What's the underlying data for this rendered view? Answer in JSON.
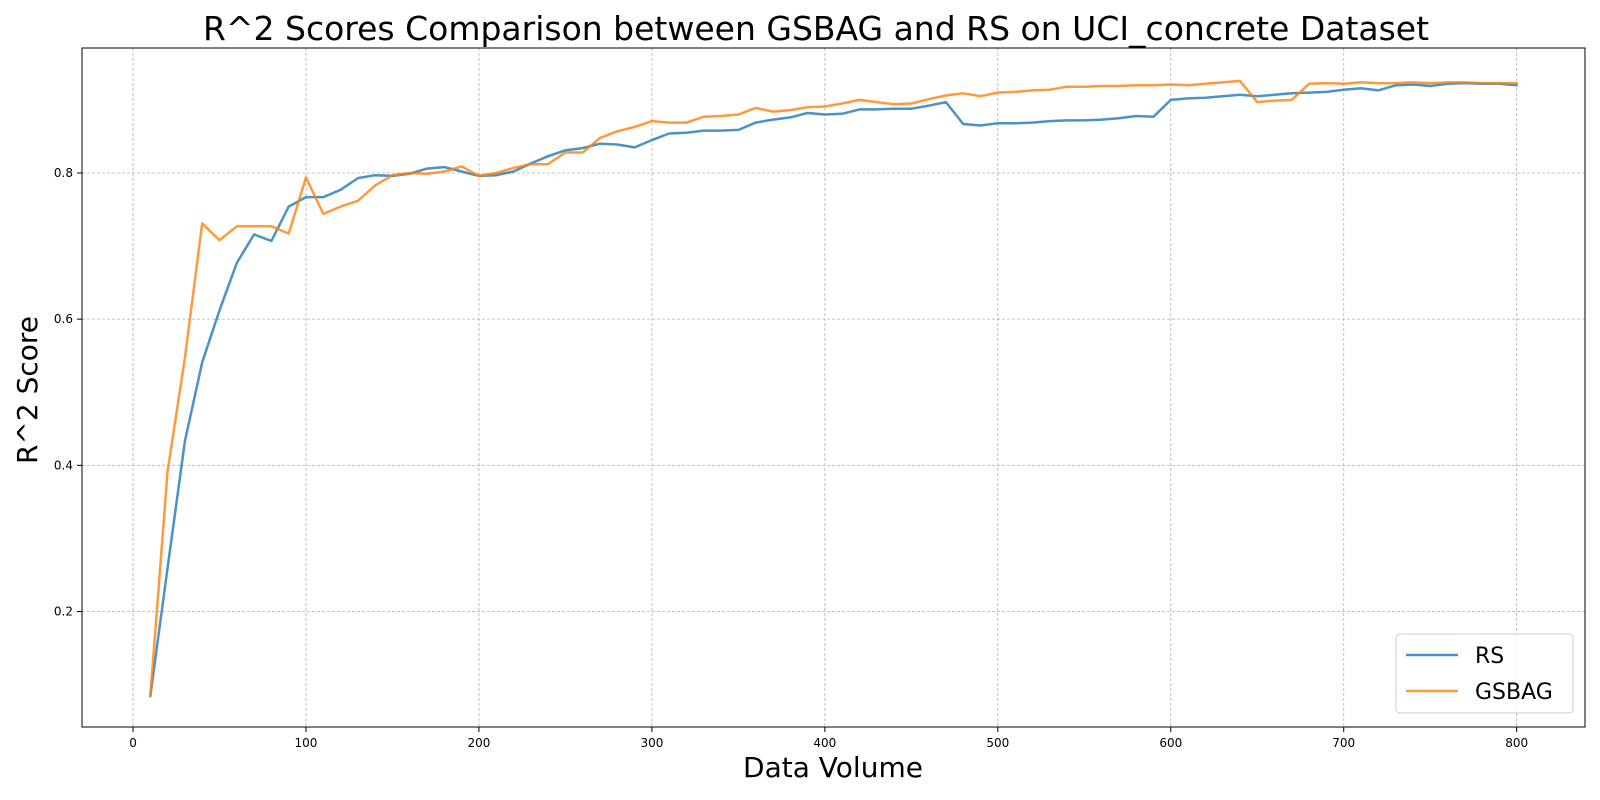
{
  "chart_data": {
    "type": "line",
    "title": "R^2 Scores Comparison between GSBAG and RS on UCI_concrete Dataset",
    "xlabel": "Data Volume",
    "ylabel": "R^2 Score",
    "xlim": [
      -29.5,
      839.5
    ],
    "ylim": [
      0.042,
      0.971
    ],
    "xticks": [
      0,
      100,
      200,
      300,
      400,
      500,
      600,
      700,
      800
    ],
    "yticks": [
      0.2,
      0.4,
      0.6,
      0.8
    ],
    "xtick_labels": [
      "0",
      "100",
      "200",
      "300",
      "400",
      "500",
      "600",
      "700",
      "800"
    ],
    "ytick_labels": [
      "0.2",
      "0.4",
      "0.6",
      "0.8"
    ],
    "grid": true,
    "legend_position": "lower-right",
    "x": [
      10,
      20,
      30,
      40,
      50,
      60,
      70,
      80,
      90,
      100,
      110,
      120,
      130,
      140,
      150,
      160,
      170,
      180,
      190,
      200,
      210,
      220,
      230,
      240,
      250,
      260,
      270,
      280,
      290,
      300,
      310,
      320,
      330,
      340,
      350,
      360,
      370,
      380,
      390,
      400,
      410,
      420,
      430,
      440,
      450,
      460,
      470,
      480,
      490,
      500,
      510,
      520,
      530,
      540,
      550,
      560,
      570,
      580,
      590,
      600,
      610,
      620,
      630,
      640,
      650,
      660,
      670,
      680,
      690,
      700,
      710,
      720,
      730,
      740,
      750,
      760,
      770,
      780,
      790,
      800
    ],
    "series": [
      {
        "name": "RS",
        "color": "#1f77b4",
        "values": [
          0.084,
          0.26,
          0.433,
          0.541,
          0.612,
          0.677,
          0.716,
          0.707,
          0.754,
          0.767,
          0.767,
          0.777,
          0.793,
          0.797,
          0.796,
          0.799,
          0.806,
          0.808,
          0.802,
          0.796,
          0.797,
          0.802,
          0.813,
          0.823,
          0.831,
          0.834,
          0.84,
          0.839,
          0.835,
          0.845,
          0.854,
          0.855,
          0.858,
          0.858,
          0.859,
          0.869,
          0.873,
          0.876,
          0.882,
          0.88,
          0.881,
          0.887,
          0.887,
          0.888,
          0.888,
          0.892,
          0.897,
          0.867,
          0.865,
          0.868,
          0.868,
          0.869,
          0.871,
          0.872,
          0.872,
          0.873,
          0.875,
          0.878,
          0.877,
          0.9,
          0.902,
          0.903,
          0.905,
          0.907,
          0.905,
          0.907,
          0.909,
          0.91,
          0.911,
          0.914,
          0.916,
          0.913,
          0.92,
          0.921,
          0.919,
          0.922,
          0.923,
          0.922,
          0.922,
          0.92
        ]
      },
      {
        "name": "GSBAG",
        "color": "#ff7f0e",
        "values": [
          0.084,
          0.392,
          0.547,
          0.731,
          0.708,
          0.727,
          0.727,
          0.727,
          0.717,
          0.794,
          0.744,
          0.754,
          0.762,
          0.783,
          0.797,
          0.8,
          0.799,
          0.802,
          0.809,
          0.796,
          0.8,
          0.807,
          0.812,
          0.812,
          0.828,
          0.828,
          0.848,
          0.857,
          0.863,
          0.871,
          0.869,
          0.869,
          0.877,
          0.878,
          0.88,
          0.889,
          0.884,
          0.886,
          0.89,
          0.891,
          0.895,
          0.9,
          0.897,
          0.894,
          0.895,
          0.901,
          0.906,
          0.909,
          0.905,
          0.91,
          0.911,
          0.913,
          0.914,
          0.918,
          0.918,
          0.919,
          0.919,
          0.92,
          0.92,
          0.921,
          0.92,
          0.922,
          0.924,
          0.926,
          0.897,
          0.899,
          0.9,
          0.922,
          0.923,
          0.922,
          0.924,
          0.923,
          0.923,
          0.924,
          0.923,
          0.924,
          0.924,
          0.923,
          0.923,
          0.923
        ]
      }
    ]
  }
}
